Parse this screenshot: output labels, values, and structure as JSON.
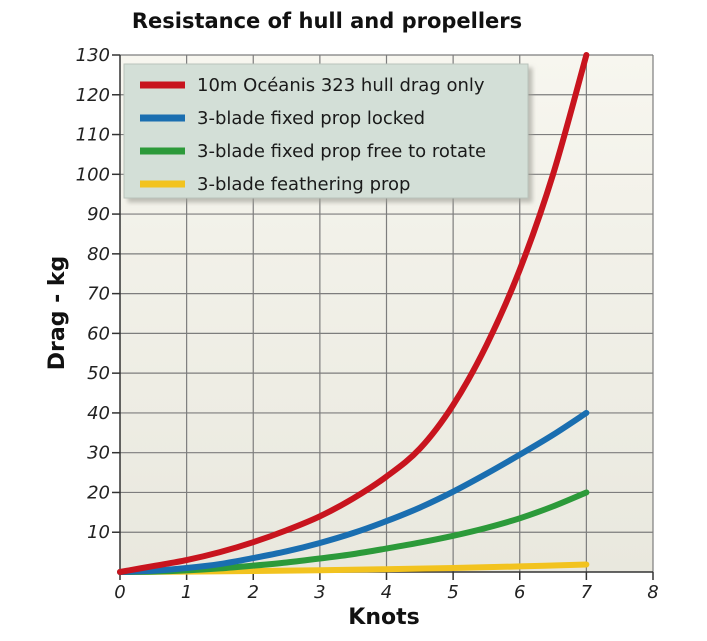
{
  "chart_data": {
    "type": "line",
    "title": "Resistance of hull and propellers",
    "xlabel": "Knots",
    "ylabel": "Drag - kg",
    "xlim": [
      0,
      8
    ],
    "ylim": [
      0,
      130
    ],
    "x_ticks": [
      "0",
      "1",
      "2",
      "3",
      "4",
      "5",
      "6",
      "7",
      "8"
    ],
    "y_ticks": [
      "10",
      "20",
      "30",
      "40",
      "50",
      "60",
      "70",
      "80",
      "90",
      "100",
      "110",
      "120",
      "130"
    ],
    "grid": true,
    "legend_position": "top-left",
    "series": [
      {
        "name": "10m Océanis 323 hull drag only",
        "color": "#c8141e",
        "x": [
          0,
          0.5,
          1,
          1.5,
          2,
          2.5,
          3,
          3.5,
          4,
          4.5,
          5,
          5.5,
          6,
          6.5,
          7
        ],
        "y": [
          0,
          1.5,
          3,
          5,
          7.5,
          10.5,
          14,
          18.5,
          24,
          31,
          42,
          57,
          76,
          100,
          130
        ]
      },
      {
        "name": "3-blade fixed prop locked",
        "color": "#1a6eb0",
        "x": [
          0,
          0.5,
          1,
          1.5,
          2,
          2.5,
          3,
          3.5,
          4,
          4.5,
          5,
          5.5,
          6,
          6.5,
          7
        ],
        "y": [
          0,
          0.3,
          1,
          2,
          3.5,
          5.2,
          7.3,
          9.8,
          12.8,
          16.2,
          20.2,
          24.7,
          29.5,
          34.5,
          40
        ]
      },
      {
        "name": "3-blade fixed prop free to rotate",
        "color": "#2c9a3a",
        "x": [
          0,
          0.5,
          1,
          1.5,
          2,
          2.5,
          3,
          3.5,
          4,
          4.5,
          5,
          5.5,
          6,
          6.5,
          7
        ],
        "y": [
          0,
          0.1,
          0.4,
          0.9,
          1.6,
          2.4,
          3.4,
          4.5,
          5.9,
          7.4,
          9.1,
          11.1,
          13.5,
          16.5,
          20
        ]
      },
      {
        "name": "3-blade feathering prop",
        "color": "#f2c31f",
        "x": [
          0,
          1,
          2,
          3,
          4,
          5,
          6,
          7
        ],
        "y": [
          0,
          0.1,
          0.25,
          0.45,
          0.7,
          1.0,
          1.4,
          1.9
        ]
      }
    ]
  }
}
